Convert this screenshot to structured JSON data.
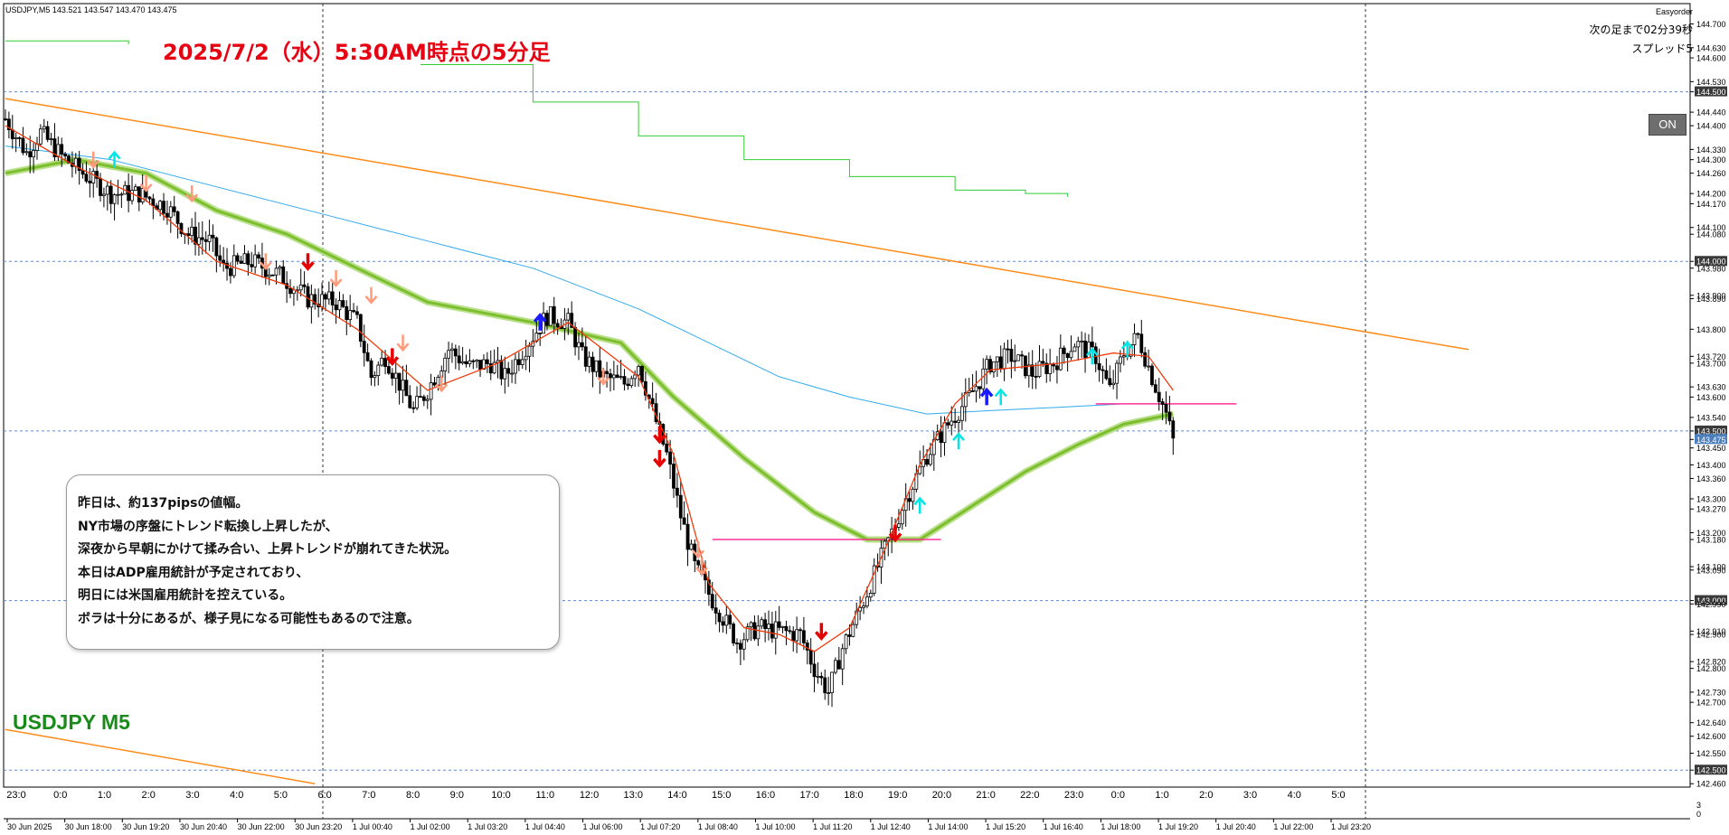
{
  "window": {
    "header": "USDJPY,M5  143.521 143.547 143.470 143.475",
    "easyorder": "Easyorder",
    "countdown": "次の足まで02分39秒",
    "spread": "スプレッド5",
    "on_button": "ON"
  },
  "annotations": {
    "title": "2025/7/2（水）5:30AM時点の5分足",
    "symbol": "USDJPY M5",
    "comment_lines": [
      "昨日は、約137pipsの値幅。",
      "NY市場の序盤にトレンド転換し上昇したが、",
      "深夜から早朝にかけて揉み合い、上昇トレンドが崩れてきた状況。",
      "本日はADP雇用統計が予定されており、",
      "明日には米国雇用統計を控えている。",
      "ボラは十分にあるが、様子見になる可能性もあるので注意。"
    ]
  },
  "colors": {
    "background": "#ffffff",
    "candle": "#000000",
    "fast_ma": "#ff3300",
    "signal_ma": "#00a0a0",
    "slow_ma": "#7dbe2e",
    "long_ma": "#33aaee",
    "upper_trend": "#ff8c1a",
    "stepped_line": "#33cc33",
    "horizontal_level": "#ff3399",
    "grid": "#6688cc",
    "sell_arrow_strong": "#e60000",
    "sell_arrow_weak": "#ff9a7a",
    "buy_arrow_strong": "#1a1aff",
    "buy_arrow_weak": "#00e5e5",
    "title": "#e60012",
    "symbol_label": "#1a8a1a"
  },
  "chart_data": {
    "type": "candlestick",
    "symbol": "USDJPY",
    "timeframe": "M5",
    "ylim": [
      142.45,
      144.76
    ],
    "price_ticks": [
      "144.700",
      "144.630",
      "144.600",
      "144.530",
      "144.500",
      "144.440",
      "144.400",
      "144.330",
      "144.300",
      "144.260",
      "144.200",
      "144.170",
      "144.100",
      "144.080",
      "144.000",
      "143.980",
      "143.900",
      "143.890",
      "143.800",
      "143.720",
      "143.700",
      "143.630",
      "143.600",
      "143.540",
      "143.500",
      "143.475",
      "143.450",
      "143.400",
      "143.360",
      "143.300",
      "143.270",
      "143.200",
      "143.180",
      "143.100",
      "143.090",
      "143.000",
      "142.990",
      "142.900",
      "142.910",
      "142.820",
      "142.800",
      "142.730",
      "142.700",
      "142.640",
      "142.600",
      "142.550",
      "142.500",
      "142.460"
    ],
    "highlighted_ticks": [
      "144.500",
      "144.000",
      "143.500",
      "143.000",
      "142.500"
    ],
    "current_price": "143.475",
    "hour_labels": [
      "23:0",
      "0:0",
      "1:0",
      "2:0",
      "3:0",
      "4:0",
      "5:0",
      "6:0",
      "7:0",
      "8:0",
      "9:0",
      "10:0",
      "11:0",
      "12:0",
      "13:0",
      "14:0",
      "15:0",
      "16:0",
      "17:0",
      "18:0",
      "19:0",
      "20:0",
      "21:0",
      "22:0",
      "23:0",
      "0:0",
      "1:0",
      "2:0",
      "3:0",
      "4:0",
      "5:0"
    ],
    "date_labels": [
      "30 Jun 2025",
      "30 Jun 18:00",
      "30 Jun 19:20",
      "30 Jun 20:40",
      "30 Jun 22:00",
      "30 Jun 23:20",
      "1 Jul 00:40",
      "1 Jul 02:00",
      "1 Jul 03:20",
      "1 Jul 04:40",
      "1 Jul 06:00",
      "1 Jul 07:20",
      "1 Jul 08:40",
      "1 Jul 10:00",
      "1 Jul 11:20",
      "1 Jul 12:40",
      "1 Jul 14:00",
      "1 Jul 15:20",
      "1 Jul 16:40",
      "1 Jul 18:00",
      "1 Jul 19:20",
      "1 Jul 20:40",
      "1 Jul 22:00",
      "1 Jul 23:20"
    ],
    "price_path": [
      [
        0,
        144.42
      ],
      [
        6,
        144.32
      ],
      [
        10,
        144.38
      ],
      [
        16,
        144.31
      ],
      [
        22,
        144.26
      ],
      [
        30,
        144.2
      ],
      [
        38,
        144.2
      ],
      [
        46,
        144.16
      ],
      [
        52,
        144.08
      ],
      [
        58,
        144.06
      ],
      [
        62,
        143.98
      ],
      [
        70,
        144.0
      ],
      [
        78,
        143.96
      ],
      [
        86,
        143.89
      ],
      [
        94,
        143.88
      ],
      [
        100,
        143.82
      ],
      [
        104,
        143.66
      ],
      [
        108,
        143.72
      ],
      [
        112,
        143.64
      ],
      [
        116,
        143.56
      ],
      [
        120,
        143.62
      ],
      [
        126,
        143.74
      ],
      [
        132,
        143.69
      ],
      [
        138,
        143.7
      ],
      [
        142,
        143.66
      ],
      [
        150,
        143.78
      ],
      [
        154,
        143.84
      ],
      [
        160,
        143.82
      ],
      [
        164,
        143.72
      ],
      [
        170,
        143.66
      ],
      [
        176,
        143.64
      ],
      [
        180,
        143.7
      ],
      [
        184,
        143.56
      ],
      [
        188,
        143.43
      ],
      [
        192,
        143.25
      ],
      [
        196,
        143.1
      ],
      [
        200,
        143.02
      ],
      [
        204,
        142.95
      ],
      [
        208,
        142.88
      ],
      [
        214,
        142.92
      ],
      [
        220,
        142.91
      ],
      [
        226,
        142.9
      ],
      [
        230,
        142.8
      ],
      [
        234,
        142.73
      ],
      [
        238,
        142.86
      ],
      [
        244,
        143.0
      ],
      [
        248,
        143.1
      ],
      [
        252,
        143.2
      ],
      [
        256,
        143.3
      ],
      [
        262,
        143.43
      ],
      [
        268,
        143.52
      ],
      [
        274,
        143.6
      ],
      [
        280,
        143.7
      ],
      [
        286,
        143.72
      ],
      [
        292,
        143.67
      ],
      [
        298,
        143.7
      ],
      [
        304,
        143.76
      ],
      [
        310,
        143.72
      ],
      [
        314,
        143.62
      ],
      [
        318,
        143.73
      ],
      [
        322,
        143.78
      ],
      [
        326,
        143.66
      ],
      [
        330,
        143.55
      ],
      [
        332,
        143.47
      ]
    ],
    "ma_fast": [
      [
        0,
        144.4
      ],
      [
        20,
        144.28
      ],
      [
        40,
        144.18
      ],
      [
        60,
        144.0
      ],
      [
        80,
        143.93
      ],
      [
        100,
        143.8
      ],
      [
        120,
        143.62
      ],
      [
        140,
        143.7
      ],
      [
        160,
        143.82
      ],
      [
        180,
        143.66
      ],
      [
        190,
        143.43
      ],
      [
        200,
        143.05
      ],
      [
        210,
        142.92
      ],
      [
        220,
        142.9
      ],
      [
        230,
        142.85
      ],
      [
        240,
        142.92
      ],
      [
        250,
        143.15
      ],
      [
        260,
        143.4
      ],
      [
        270,
        143.58
      ],
      [
        280,
        143.68
      ],
      [
        300,
        143.7
      ],
      [
        315,
        143.73
      ],
      [
        325,
        143.72
      ],
      [
        332,
        143.62
      ]
    ],
    "ma_slow": [
      [
        0,
        144.26
      ],
      [
        20,
        144.3
      ],
      [
        40,
        144.26
      ],
      [
        60,
        144.15
      ],
      [
        80,
        144.08
      ],
      [
        100,
        143.98
      ],
      [
        120,
        143.88
      ],
      [
        150,
        143.82
      ],
      [
        175,
        143.76
      ],
      [
        190,
        143.6
      ],
      [
        210,
        143.42
      ],
      [
        230,
        143.26
      ],
      [
        245,
        143.18
      ],
      [
        260,
        143.18
      ],
      [
        275,
        143.28
      ],
      [
        290,
        143.38
      ],
      [
        305,
        143.46
      ],
      [
        318,
        143.52
      ],
      [
        332,
        143.55
      ]
    ],
    "ma_long": [
      [
        0,
        144.34
      ],
      [
        30,
        144.3
      ],
      [
        60,
        144.22
      ],
      [
        90,
        144.14
      ],
      [
        120,
        144.06
      ],
      [
        150,
        143.98
      ],
      [
        180,
        143.86
      ],
      [
        200,
        143.76
      ],
      [
        220,
        143.66
      ],
      [
        240,
        143.6
      ],
      [
        262,
        143.55
      ],
      [
        280,
        143.56
      ],
      [
        300,
        143.57
      ],
      [
        318,
        143.58
      ],
      [
        330,
        143.58
      ]
    ],
    "trendline_upper": [
      [
        0,
        144.48
      ],
      [
        416,
        143.74
      ]
    ],
    "trendline_lower": [
      [
        0,
        142.62
      ],
      [
        88,
        142.46
      ]
    ],
    "stepped_line": [
      [
        0,
        144.65
      ],
      [
        35,
        144.64
      ],
      [
        35,
        null
      ],
      [
        118,
        144.58
      ],
      [
        150,
        144.47
      ],
      [
        180,
        144.37
      ],
      [
        210,
        144.3
      ],
      [
        240,
        144.25
      ],
      [
        270,
        144.21
      ],
      [
        290,
        144.2
      ],
      [
        302,
        144.19
      ]
    ],
    "horizontal_levels": [
      {
        "y": 143.18,
        "x_range": [
          201,
          266
        ]
      },
      {
        "y": 143.58,
        "x_range": [
          310,
          350
        ]
      }
    ],
    "signals": [
      {
        "x": 25,
        "y": 144.3,
        "kind": "sell_weak"
      },
      {
        "x": 31,
        "y": 144.3,
        "kind": "buy_weak"
      },
      {
        "x": 40,
        "y": 144.23,
        "kind": "sell_weak"
      },
      {
        "x": 53,
        "y": 144.2,
        "kind": "sell_weak"
      },
      {
        "x": 74,
        "y": 144.0,
        "kind": "sell_weak"
      },
      {
        "x": 86,
        "y": 144.0,
        "kind": "sell_strong"
      },
      {
        "x": 94,
        "y": 143.95,
        "kind": "sell_weak"
      },
      {
        "x": 104,
        "y": 143.9,
        "kind": "sell_weak"
      },
      {
        "x": 110,
        "y": 143.72,
        "kind": "sell_strong"
      },
      {
        "x": 113,
        "y": 143.76,
        "kind": "sell_weak"
      },
      {
        "x": 124,
        "y": 143.64,
        "kind": "sell_weak"
      },
      {
        "x": 152,
        "y": 143.82,
        "kind": "buy_strong"
      },
      {
        "x": 170,
        "y": 143.66,
        "kind": "sell_weak"
      },
      {
        "x": 186,
        "y": 143.49,
        "kind": "sell_strong"
      },
      {
        "x": 186,
        "y": 143.42,
        "kind": "sell_strong"
      },
      {
        "x": 197,
        "y": 143.15,
        "kind": "sell_weak"
      },
      {
        "x": 198,
        "y": 143.1,
        "kind": "sell_weak"
      },
      {
        "x": 232,
        "y": 142.91,
        "kind": "sell_strong"
      },
      {
        "x": 253,
        "y": 143.2,
        "kind": "sell_strong"
      },
      {
        "x": 260,
        "y": 143.28,
        "kind": "buy_weak"
      },
      {
        "x": 271,
        "y": 143.47,
        "kind": "buy_weak"
      },
      {
        "x": 279,
        "y": 143.6,
        "kind": "buy_strong"
      },
      {
        "x": 283,
        "y": 143.6,
        "kind": "buy_weak"
      },
      {
        "x": 309,
        "y": 143.72,
        "kind": "buy_weak"
      },
      {
        "x": 319,
        "y": 143.74,
        "kind": "buy_weak"
      }
    ]
  }
}
